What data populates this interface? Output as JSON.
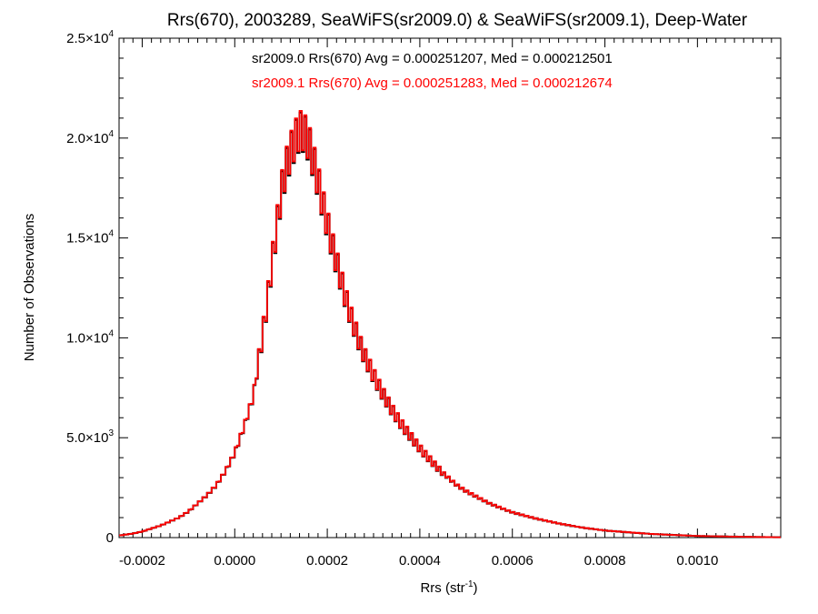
{
  "chart_data": {
    "type": "line",
    "title": "Rrs(670), 2003289, SeaWiFS(sr2009.0) & SeaWiFS(sr2009.1), Deep-Water",
    "xlabel": {
      "main": "Rrs (str",
      "sup": "-1",
      "close": ")"
    },
    "ylabel": "Number of Observations",
    "xlim": [
      -0.00025,
      0.00118
    ],
    "ylim": [
      0,
      25000
    ],
    "xticks": [
      {
        "value": -0.0002,
        "label": "-0.0002"
      },
      {
        "value": 0.0,
        "label": "0.0000"
      },
      {
        "value": 0.0002,
        "label": "0.0002"
      },
      {
        "value": 0.0004,
        "label": "0.0004"
      },
      {
        "value": 0.0006,
        "label": "0.0006"
      },
      {
        "value": 0.0008,
        "label": "0.0008"
      },
      {
        "value": 0.001,
        "label": "0.0010"
      }
    ],
    "yticks": [
      {
        "value": 0,
        "mant": "0",
        "exp": ""
      },
      {
        "value": 5000,
        "mant": "5.0×10",
        "exp": "3"
      },
      {
        "value": 10000,
        "mant": "1.0×10",
        "exp": "4"
      },
      {
        "value": 15000,
        "mant": "1.5×10",
        "exp": "4"
      },
      {
        "value": 20000,
        "mant": "2.0×10",
        "exp": "4"
      },
      {
        "value": 25000,
        "mant": "2.5×10",
        "exp": "4"
      }
    ],
    "grid": false,
    "annotations": [
      {
        "text": "sr2009.0 Rrs(670) Avg = 0.000251207, Med = 0.000212501",
        "color": "#000000"
      },
      {
        "text": "sr2009.1 Rrs(670) Avg = 0.000251283, Med = 0.000212674",
        "color": "#ff0000"
      }
    ],
    "series": [
      {
        "color": "#000000",
        "x": [
          -0.00025,
          -0.00022,
          -0.0002,
          -0.00018,
          -0.00016,
          -0.00014,
          -0.00012,
          -0.0001,
          -8e-05,
          -6e-05,
          -4e-05,
          -2e-05,
          0.0,
          2e-05,
          4e-05,
          5e-05,
          6e-05,
          7e-05,
          8e-05,
          9e-05,
          0.0001,
          0.00011,
          0.00012,
          0.00013,
          0.00014,
          0.00015,
          0.00016,
          0.00017,
          0.00018,
          0.00019,
          0.0002,
          0.00021,
          0.00022,
          0.00023,
          0.00024,
          0.00025,
          0.00026,
          0.00027,
          0.00028,
          0.0003,
          0.00032,
          0.00034,
          0.00036,
          0.00038,
          0.0004,
          0.00042,
          0.00044,
          0.00046,
          0.00048,
          0.0005,
          0.00055,
          0.0006,
          0.00065,
          0.0007,
          0.00075,
          0.0008,
          0.0009,
          0.001,
          0.0011,
          0.00118
        ],
        "values": [
          100,
          200,
          300,
          450,
          600,
          800,
          1000,
          1300,
          1700,
          2100,
          2600,
          3300,
          4200,
          5500,
          7000,
          8500,
          10000,
          11600,
          13500,
          15200,
          17000,
          18200,
          19000,
          19600,
          20100,
          20000,
          19500,
          18600,
          17600,
          16500,
          15500,
          14500,
          13600,
          12700,
          11800,
          11000,
          10300,
          9600,
          9000,
          8000,
          7100,
          6300,
          5600,
          5000,
          4400,
          3900,
          3400,
          3000,
          2600,
          2300,
          1700,
          1250,
          950,
          700,
          500,
          350,
          180,
          80,
          40,
          15
        ]
      },
      {
        "color": "#ff0000",
        "x": [
          -0.00025,
          -0.00022,
          -0.0002,
          -0.00018,
          -0.00016,
          -0.00014,
          -0.00012,
          -0.0001,
          -8e-05,
          -6e-05,
          -4e-05,
          -2e-05,
          0.0,
          2e-05,
          4e-05,
          5e-05,
          6e-05,
          7e-05,
          8e-05,
          9e-05,
          0.0001,
          0.00011,
          0.00012,
          0.00013,
          0.00014,
          0.00015,
          0.00016,
          0.00017,
          0.00018,
          0.00019,
          0.0002,
          0.00021,
          0.00022,
          0.00023,
          0.00024,
          0.00025,
          0.00026,
          0.00027,
          0.00028,
          0.0003,
          0.00032,
          0.00034,
          0.00036,
          0.00038,
          0.0004,
          0.00042,
          0.00044,
          0.00046,
          0.00048,
          0.0005,
          0.00055,
          0.0006,
          0.00065,
          0.0007,
          0.00075,
          0.0008,
          0.0009,
          0.001,
          0.0011,
          0.00118
        ],
        "values": [
          100,
          200,
          300,
          450,
          600,
          800,
          1000,
          1300,
          1700,
          2100,
          2600,
          3300,
          4200,
          5500,
          7000,
          8500,
          10000,
          11600,
          13500,
          15200,
          17000,
          18200,
          19000,
          19600,
          20100,
          20000,
          19500,
          18600,
          17600,
          16500,
          15500,
          14500,
          13600,
          12700,
          11800,
          11000,
          10300,
          9600,
          9000,
          8000,
          7100,
          6300,
          5600,
          5000,
          4400,
          3900,
          3400,
          3000,
          2600,
          2300,
          1700,
          1250,
          950,
          700,
          500,
          350,
          180,
          80,
          40,
          15
        ]
      }
    ]
  }
}
